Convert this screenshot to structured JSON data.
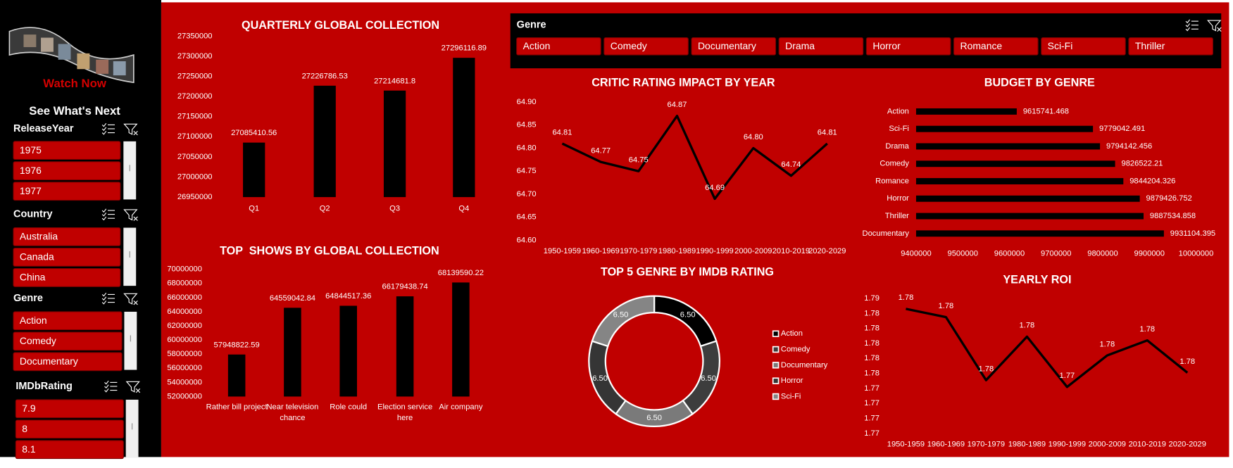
{
  "sidebar": {
    "brand": "Watch Now",
    "heading": "See What's Next",
    "slicers": [
      {
        "title": "ReleaseYear",
        "items": [
          "1975",
          "1976",
          "1977"
        ]
      },
      {
        "title": "Country",
        "items": [
          "Australia",
          "Canada",
          "China"
        ]
      },
      {
        "title": "Genre",
        "items": [
          "Action",
          "Comedy",
          "Documentary"
        ]
      },
      {
        "title": "IMDbRating",
        "items": [
          "7.9",
          "8",
          "8.1"
        ]
      }
    ]
  },
  "top_slicer": {
    "title": "Genre",
    "items": [
      "Action",
      "Comedy",
      "Documentary",
      "Drama",
      "Horror",
      "Romance",
      "Sci-Fi",
      "Thriller"
    ]
  },
  "chart_data": [
    {
      "type": "bar",
      "title": "QUARTERLY GLOBAL COLLECTION",
      "categories": [
        "Q1",
        "Q2",
        "Q3",
        "Q4"
      ],
      "values": [
        27085410.56,
        27226786.53,
        27214681.8,
        27296116.89
      ],
      "color": "#000000",
      "ylim": [
        26950000,
        27350000
      ],
      "yticks": [
        26950000,
        27000000,
        27050000,
        27100000,
        27150000,
        27200000,
        27250000,
        27300000,
        27350000
      ],
      "grid": false
    },
    {
      "type": "bar",
      "title": "TOP  SHOWS BY GLOBAL COLLECTION",
      "categories": [
        "Rather bill project",
        "Near television chance",
        "Role could",
        "Election service here",
        "Air company"
      ],
      "values": [
        57948822.59,
        64559042.84,
        64844517.36,
        66179438.74,
        68139590.22
      ],
      "color": "#000000",
      "ylim": [
        52000000,
        70000000
      ],
      "yticks": [
        52000000,
        54000000,
        56000000,
        58000000,
        60000000,
        62000000,
        64000000,
        66000000,
        68000000,
        70000000
      ],
      "grid": false
    },
    {
      "type": "line",
      "title": "CRITIC RATING IMPACT BY YEAR",
      "categories": [
        "1950-1959",
        "1960-1969",
        "1970-1979",
        "1980-1989",
        "1990-1999",
        "2000-2009",
        "2010-2019",
        "2020-2029"
      ],
      "values": [
        64.81,
        64.77,
        64.75,
        64.87,
        64.69,
        64.8,
        64.74,
        64.81
      ],
      "value_labels": [
        "64.81",
        "64.77",
        "64.75",
        "64.87",
        "64.69",
        "64.80",
        "64.74",
        "64.81"
      ],
      "color": "#000000",
      "ylim": [
        64.6,
        64.9
      ],
      "yticks": [
        {
          "value": 64.6,
          "label": "64.60"
        },
        64.65,
        {
          "value": 64.7,
          "label": "64.70"
        },
        64.75,
        {
          "value": 64.8,
          "label": "64.80"
        },
        64.85,
        {
          "value": 64.9,
          "label": "64.90"
        }
      ],
      "grid": false
    },
    {
      "type": "bar",
      "orientation": "horizontal",
      "title": "BUDGET BY GENRE",
      "categories": [
        "Action",
        "Sci-Fi",
        "Drama",
        "Comedy",
        "Romance",
        "Horror",
        "Thriller",
        "Documentary"
      ],
      "values": [
        9615741.468,
        9779042.491,
        9794142.456,
        9826522.21,
        9844204.326,
        9879426.752,
        9887534.858,
        9931104.395
      ],
      "color": "#000000",
      "xlim": [
        9400000,
        10000000
      ],
      "xticks": [
        9400000,
        9500000,
        9600000,
        9700000,
        9800000,
        9900000,
        10000000
      ],
      "grid": false
    },
    {
      "type": "donut",
      "title": "TOP 5 GENRE BY IMDB RATING",
      "categories": [
        "Action",
        "Comedy",
        "Documentary",
        "Horror",
        "Sci-Fi"
      ],
      "values": [
        6.5,
        6.5,
        6.5,
        6.5,
        6.5
      ],
      "value_labels": [
        "6.50",
        "6.50",
        "6.50",
        "6.50",
        "6.50"
      ],
      "colors": [
        "#000000",
        "#3d3d3d",
        "#7a7a7a",
        "#353535",
        "#858585"
      ],
      "legend": "right"
    },
    {
      "type": "line",
      "title": "YEARLY ROI",
      "categories": [
        "1950-1959",
        "1960-1969",
        "1970-1979",
        "1980-1989",
        "1990-1999",
        "2000-2009",
        "2010-2019",
        "2020-2029"
      ],
      "values": [
        1.7846,
        1.7835,
        1.7751,
        1.7809,
        1.7742,
        1.7784,
        1.7804,
        1.7761
      ],
      "value_labels": [
        "1.78",
        "1.78",
        "1.78",
        "1.78",
        "1.77",
        "1.78",
        "1.78",
        "1.78"
      ],
      "color": "#000000",
      "ylim": [
        1.768,
        1.786
      ],
      "yticks": [
        {
          "value": 1.768,
          "label": "1.77"
        },
        {
          "value": 1.77,
          "label": "1.77"
        },
        {
          "value": 1.772,
          "label": "1.77"
        },
        {
          "value": 1.774,
          "label": "1.77"
        },
        {
          "value": 1.776,
          "label": "1.78"
        },
        {
          "value": 1.778,
          "label": "1.78"
        },
        {
          "value": 1.78,
          "label": "1.78"
        },
        {
          "value": 1.782,
          "label": "1.78"
        },
        {
          "value": 1.784,
          "label": "1.78"
        },
        {
          "value": 1.786,
          "label": "1.79"
        }
      ],
      "grid": false
    }
  ]
}
